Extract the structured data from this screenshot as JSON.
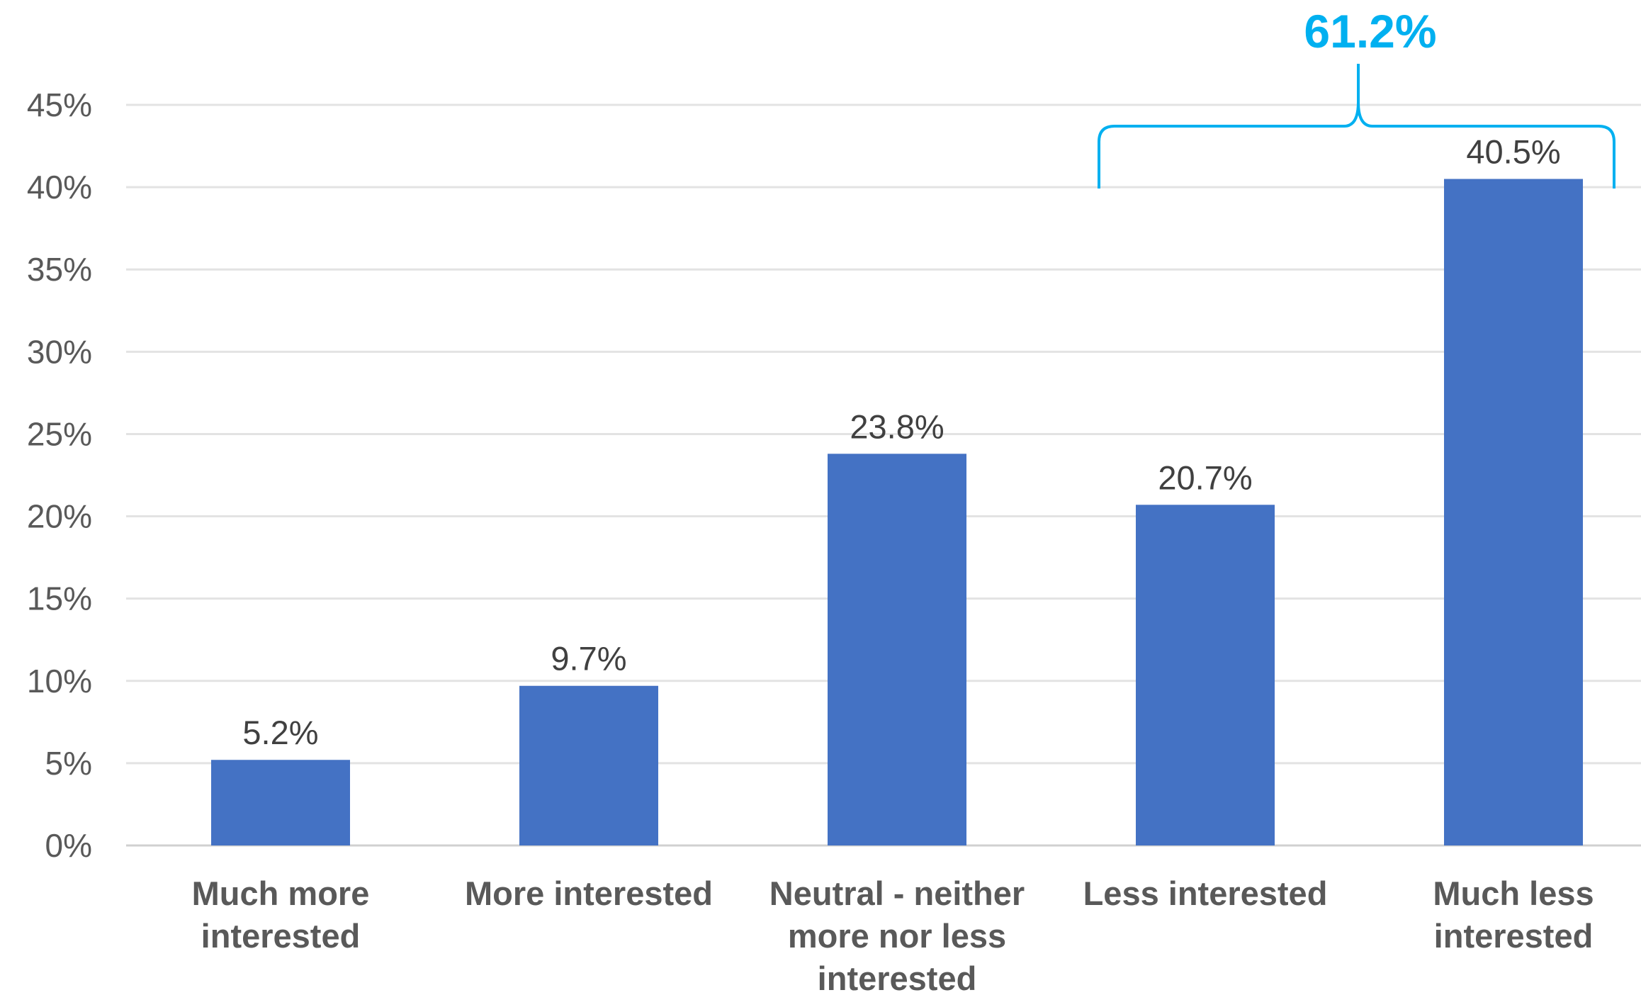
{
  "chart_data": {
    "type": "bar",
    "categories": [
      [
        "Much more",
        "interested"
      ],
      [
        "More interested"
      ],
      [
        "Neutral - neither",
        "more nor less",
        "interested"
      ],
      [
        "Less interested"
      ],
      [
        "Much less",
        "interested"
      ]
    ],
    "values": [
      5.2,
      9.7,
      23.8,
      20.7,
      40.5
    ],
    "data_labels": [
      "5.2%",
      "9.7%",
      "23.8%",
      "20.7%",
      "40.5%"
    ],
    "ylim": [
      0,
      45
    ],
    "yticks": [
      0,
      5,
      10,
      15,
      20,
      25,
      30,
      35,
      40,
      45
    ],
    "ytick_labels": [
      "0%",
      "5%",
      "10%",
      "15%",
      "20%",
      "25%",
      "30%",
      "35%",
      "40%",
      "45%"
    ],
    "grid": true,
    "bar_color": "#4472C4",
    "annotation": {
      "text": "61.2%",
      "color": "#00B0F0",
      "spans_categories": [
        3,
        4
      ],
      "type": "bracket"
    },
    "title": "",
    "xlabel": "",
    "ylabel": ""
  }
}
